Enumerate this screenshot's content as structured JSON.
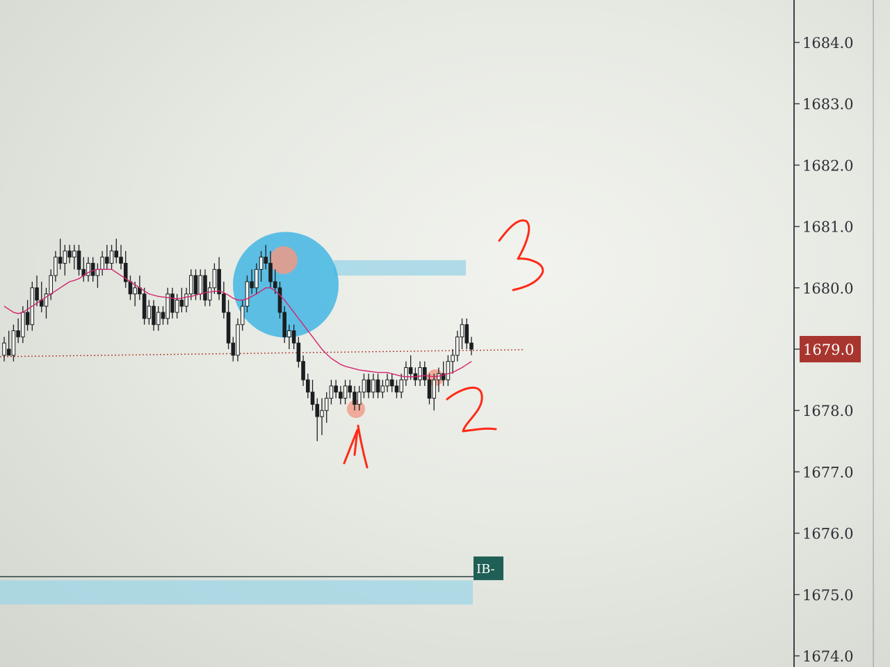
{
  "chart_data": {
    "type": "candlestick",
    "y_axis": {
      "ticks": [
        "1684.0",
        "1683.0",
        "1682.0",
        "1681.0",
        "1680.0",
        "1679.0",
        "1678.0",
        "1677.0",
        "1676.0",
        "1675.0",
        "1674.0"
      ],
      "range": [
        1673.8,
        1684.6
      ],
      "current_price": "1679.0",
      "current_price_color": "#a8362e"
    },
    "candles": [
      [
        1678.9,
        1679.2,
        1678.8,
        1679.1
      ],
      [
        1679.0,
        1679.3,
        1678.9,
        1678.9
      ],
      [
        1678.9,
        1679.4,
        1678.8,
        1679.3
      ],
      [
        1679.3,
        1679.5,
        1679.1,
        1679.2
      ],
      [
        1679.2,
        1679.7,
        1679.1,
        1679.6
      ],
      [
        1679.6,
        1679.8,
        1679.3,
        1679.4
      ],
      [
        1679.4,
        1680.1,
        1679.3,
        1680.0
      ],
      [
        1680.0,
        1680.2,
        1679.7,
        1679.8
      ],
      [
        1679.8,
        1680.1,
        1679.6,
        1679.7
      ],
      [
        1679.7,
        1680.0,
        1679.5,
        1679.9
      ],
      [
        1679.9,
        1680.3,
        1679.8,
        1680.2
      ],
      [
        1680.2,
        1680.6,
        1680.1,
        1680.5
      ],
      [
        1680.5,
        1680.8,
        1680.3,
        1680.4
      ],
      [
        1680.4,
        1680.7,
        1680.2,
        1680.6
      ],
      [
        1680.6,
        1680.7,
        1680.4,
        1680.5
      ],
      [
        1680.5,
        1680.7,
        1680.3,
        1680.6
      ],
      [
        1680.6,
        1680.7,
        1680.2,
        1680.3
      ],
      [
        1680.3,
        1680.5,
        1680.1,
        1680.2
      ],
      [
        1680.2,
        1680.5,
        1680.1,
        1680.4
      ],
      [
        1680.4,
        1680.5,
        1680.1,
        1680.2
      ],
      [
        1680.2,
        1680.4,
        1680.0,
        1680.3
      ],
      [
        1680.3,
        1680.6,
        1680.2,
        1680.5
      ],
      [
        1680.5,
        1680.7,
        1680.3,
        1680.4
      ],
      [
        1680.4,
        1680.7,
        1680.3,
        1680.6
      ],
      [
        1680.6,
        1680.8,
        1680.4,
        1680.5
      ],
      [
        1680.5,
        1680.7,
        1680.3,
        1680.4
      ],
      [
        1680.4,
        1680.6,
        1680.0,
        1680.1
      ],
      [
        1680.1,
        1680.2,
        1679.8,
        1679.9
      ],
      [
        1679.9,
        1680.1,
        1679.7,
        1680.0
      ],
      [
        1680.0,
        1680.2,
        1679.8,
        1679.9
      ],
      [
        1679.9,
        1680.0,
        1679.4,
        1679.5
      ],
      [
        1679.5,
        1679.8,
        1679.4,
        1679.7
      ],
      [
        1679.7,
        1679.8,
        1679.3,
        1679.4
      ],
      [
        1679.4,
        1679.7,
        1679.3,
        1679.6
      ],
      [
        1679.6,
        1679.7,
        1679.4,
        1679.5
      ],
      [
        1679.5,
        1680.0,
        1679.4,
        1679.9
      ],
      [
        1679.9,
        1680.0,
        1679.5,
        1679.6
      ],
      [
        1679.6,
        1679.9,
        1679.5,
        1679.8
      ],
      [
        1679.8,
        1680.0,
        1679.6,
        1679.7
      ],
      [
        1679.7,
        1680.0,
        1679.6,
        1679.9
      ],
      [
        1679.9,
        1680.3,
        1679.8,
        1680.2
      ],
      [
        1680.2,
        1680.3,
        1679.8,
        1679.9
      ],
      [
        1679.9,
        1680.3,
        1679.8,
        1680.2
      ],
      [
        1680.2,
        1680.3,
        1679.7,
        1679.8
      ],
      [
        1679.8,
        1680.1,
        1679.7,
        1680.0
      ],
      [
        1680.0,
        1680.4,
        1679.9,
        1680.3
      ],
      [
        1680.3,
        1680.5,
        1679.8,
        1679.9
      ],
      [
        1679.9,
        1680.1,
        1679.5,
        1679.6
      ],
      [
        1679.6,
        1679.8,
        1679.0,
        1679.1
      ],
      [
        1679.1,
        1679.2,
        1678.8,
        1678.9
      ],
      [
        1678.9,
        1679.5,
        1678.8,
        1679.4
      ],
      [
        1679.4,
        1679.8,
        1679.3,
        1679.7
      ],
      [
        1679.7,
        1680.2,
        1679.6,
        1680.1
      ],
      [
        1680.1,
        1680.3,
        1679.9,
        1680.0
      ],
      [
        1680.0,
        1680.4,
        1679.9,
        1680.3
      ],
      [
        1680.3,
        1680.6,
        1680.1,
        1680.5
      ],
      [
        1680.5,
        1680.7,
        1680.3,
        1680.4
      ],
      [
        1680.4,
        1680.6,
        1680.0,
        1680.1
      ],
      [
        1680.1,
        1680.3,
        1679.9,
        1680.0
      ],
      [
        1680.0,
        1680.1,
        1679.5,
        1679.6
      ],
      [
        1679.6,
        1679.7,
        1679.1,
        1679.2
      ],
      [
        1679.2,
        1679.4,
        1679.0,
        1679.3
      ],
      [
        1679.3,
        1679.4,
        1679.0,
        1679.1
      ],
      [
        1679.1,
        1679.2,
        1678.7,
        1678.8
      ],
      [
        1678.8,
        1678.9,
        1678.4,
        1678.5
      ],
      [
        1678.5,
        1678.6,
        1678.2,
        1678.3
      ],
      [
        1678.3,
        1678.5,
        1678.0,
        1678.1
      ],
      [
        1678.1,
        1678.2,
        1677.5,
        1677.9
      ],
      [
        1677.9,
        1678.2,
        1677.6,
        1678.0
      ],
      [
        1678.0,
        1678.3,
        1677.8,
        1678.2
      ],
      [
        1678.2,
        1678.5,
        1678.1,
        1678.4
      ],
      [
        1678.4,
        1678.5,
        1678.2,
        1678.3
      ],
      [
        1678.3,
        1678.4,
        1678.1,
        1678.2
      ],
      [
        1678.2,
        1678.5,
        1678.1,
        1678.4
      ],
      [
        1678.4,
        1678.5,
        1678.2,
        1678.3
      ],
      [
        1678.3,
        1678.4,
        1678.0,
        1678.1
      ],
      [
        1678.1,
        1678.4,
        1678.0,
        1678.3
      ],
      [
        1678.3,
        1678.6,
        1678.2,
        1678.5
      ],
      [
        1678.5,
        1678.6,
        1678.2,
        1678.3
      ],
      [
        1678.3,
        1678.6,
        1678.2,
        1678.5
      ],
      [
        1678.5,
        1678.6,
        1678.2,
        1678.3
      ],
      [
        1678.3,
        1678.5,
        1678.2,
        1678.4
      ],
      [
        1678.4,
        1678.6,
        1678.3,
        1678.5
      ],
      [
        1678.5,
        1678.6,
        1678.3,
        1678.4
      ],
      [
        1678.4,
        1678.5,
        1678.2,
        1678.3
      ],
      [
        1678.3,
        1678.6,
        1678.2,
        1678.5
      ],
      [
        1678.5,
        1678.8,
        1678.4,
        1678.7
      ],
      [
        1678.7,
        1678.9,
        1678.5,
        1678.6
      ],
      [
        1678.6,
        1678.7,
        1678.4,
        1678.5
      ],
      [
        1678.5,
        1678.8,
        1678.4,
        1678.7
      ],
      [
        1678.7,
        1678.8,
        1678.4,
        1678.5
      ],
      [
        1678.5,
        1678.6,
        1678.1,
        1678.2
      ],
      [
        1678.2,
        1678.6,
        1678.0,
        1678.5
      ],
      [
        1678.5,
        1678.7,
        1678.3,
        1678.6
      ],
      [
        1678.6,
        1678.8,
        1678.4,
        1678.5
      ],
      [
        1678.5,
        1678.9,
        1678.4,
        1678.8
      ],
      [
        1678.8,
        1679.0,
        1678.6,
        1678.9
      ],
      [
        1678.9,
        1679.3,
        1678.8,
        1679.2
      ],
      [
        1679.2,
        1679.5,
        1679.0,
        1679.4
      ],
      [
        1679.4,
        1679.5,
        1679.0,
        1679.1
      ],
      [
        1679.1,
        1679.2,
        1678.9,
        1679.0
      ]
    ],
    "moving_average": {
      "color": "#d4236e",
      "values": [
        1679.7,
        1679.65,
        1679.6,
        1679.58,
        1679.6,
        1679.65,
        1679.7,
        1679.75,
        1679.8,
        1679.85,
        1679.9,
        1679.95,
        1680.0,
        1680.05,
        1680.1,
        1680.12,
        1680.15,
        1680.2,
        1680.25,
        1680.28,
        1680.3,
        1680.3,
        1680.3,
        1680.3,
        1680.25,
        1680.2,
        1680.15,
        1680.1,
        1680.05,
        1680.0,
        1679.95,
        1679.9,
        1679.88,
        1679.86,
        1679.85,
        1679.84,
        1679.83,
        1679.82,
        1679.83,
        1679.85,
        1679.86,
        1679.88,
        1679.9,
        1679.92,
        1679.93,
        1679.94,
        1679.95,
        1679.92,
        1679.88,
        1679.83,
        1679.8,
        1679.8,
        1679.82,
        1679.86,
        1679.9,
        1679.95,
        1680.0,
        1680.0,
        1679.95,
        1679.88,
        1679.8,
        1679.7,
        1679.6,
        1679.5,
        1679.4,
        1679.3,
        1679.2,
        1679.1,
        1679.0,
        1678.92,
        1678.85,
        1678.8,
        1678.75,
        1678.72,
        1678.7,
        1678.68,
        1678.66,
        1678.65,
        1678.64,
        1678.63,
        1678.62,
        1678.62,
        1678.62,
        1678.6,
        1678.58,
        1678.56,
        1678.55,
        1678.55,
        1678.55,
        1678.56,
        1678.57,
        1678.56,
        1678.55,
        1678.56,
        1678.58,
        1678.6,
        1678.62,
        1678.66,
        1678.7,
        1678.75,
        1678.8
      ]
    },
    "reference_line": {
      "price": 1678.9,
      "color": "#b03a2a"
    },
    "zones": [
      {
        "label": "",
        "price_low": 1680.2,
        "price_high": 1680.45,
        "color": "#9dd6e6"
      },
      {
        "label": "IB-",
        "price_low": 1674.95,
        "price_high": 1675.3,
        "color": "#9dd6e6",
        "line_price": 1675.45,
        "tag_color": "#1f5f55"
      }
    ],
    "highlight_circle": {
      "price_center": 1680.05,
      "color": "#43b6e3"
    },
    "hand_annotations": [
      "1",
      "2",
      "3"
    ]
  }
}
